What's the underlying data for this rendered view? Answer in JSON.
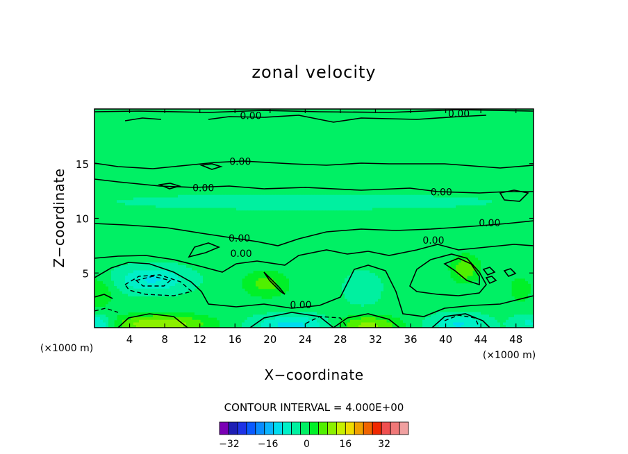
{
  "chart_data": {
    "type": "contour",
    "title": "zonal velocity",
    "xlabel": "X−coordinate",
    "ylabel": "Z−coordinate",
    "x_unit": "(×1000 m)",
    "y_unit": "(×1000 m)",
    "xlim": [
      0,
      50
    ],
    "ylim": [
      0,
      20
    ],
    "x_ticks": [
      4,
      8,
      12,
      16,
      20,
      24,
      28,
      32,
      36,
      40,
      44,
      48
    ],
    "x_tick_labels": [
      "4",
      "8",
      "12",
      "16",
      "20",
      "24",
      "28",
      "32",
      "36",
      "40",
      "44",
      "48"
    ],
    "y_ticks": [
      5,
      10,
      15
    ],
    "y_tick_labels": [
      "5",
      "10",
      "15"
    ],
    "contour_interval_text": "CONTOUR INTERVAL = 4.000E+00",
    "contour_labels": [
      {
        "text": "0.00",
        "x": 17.8,
        "y": 19.4
      },
      {
        "text": "0.00",
        "x": 41.5,
        "y": 19.6
      },
      {
        "text": "0.00",
        "x": 16.6,
        "y": 15.2
      },
      {
        "text": "0.00",
        "x": 12.4,
        "y": 12.8
      },
      {
        "text": "0.00",
        "x": 39.5,
        "y": 12.4
      },
      {
        "text": "0.00",
        "x": 45.0,
        "y": 9.6
      },
      {
        "text": "0.00",
        "x": 16.5,
        "y": 8.2
      },
      {
        "text": "0.00",
        "x": 38.6,
        "y": 8.0
      },
      {
        "text": "0.00",
        "x": 16.7,
        "y": 6.8
      },
      {
        "text": "0.00",
        "x": 23.5,
        "y": 2.1
      }
    ],
    "colorbar": {
      "min": -36,
      "max": 36,
      "step": 4,
      "colors": [
        "#7a00b4",
        "#1e1eb4",
        "#1e32e6",
        "#0a5aff",
        "#0a8cff",
        "#0ab4ff",
        "#00dcf0",
        "#00f0c8",
        "#00f0a0",
        "#00f064",
        "#00f028",
        "#50f000",
        "#8cf000",
        "#c8f000",
        "#f0dc00",
        "#f0a000",
        "#f06400",
        "#f02800",
        "#f05050",
        "#f07878",
        "#f0a0a0"
      ],
      "tick_values": [
        -32,
        -16,
        0,
        16,
        32
      ],
      "tick_labels": [
        "−32",
        "−16",
        "0",
        "16",
        "32"
      ]
    }
  }
}
